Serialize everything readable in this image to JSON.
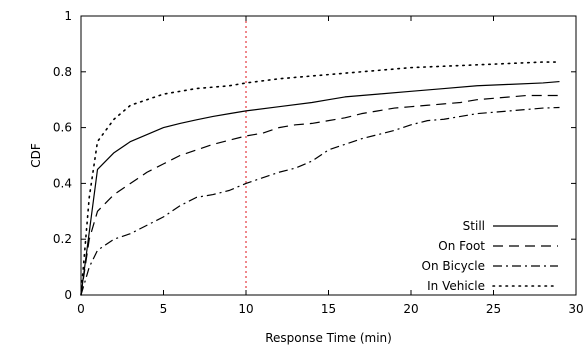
{
  "chart_data": {
    "type": "line",
    "xlabel": "Response Time (min)",
    "ylabel": "CDF",
    "xlim": [
      0,
      30
    ],
    "ylim": [
      0,
      1
    ],
    "xticks": [
      "0",
      "5",
      "10",
      "15",
      "20",
      "25",
      "30"
    ],
    "yticks": [
      "0",
      "0.2",
      "0.4",
      "0.6",
      "0.8",
      "1"
    ],
    "grid": false,
    "legend_position": "bottom-right",
    "reference_line": {
      "x": 10,
      "color": "#e0101a",
      "style": "dotted"
    },
    "series": [
      {
        "name": "Still",
        "dash": "solid",
        "points": [
          [
            0,
            0
          ],
          [
            1,
            0.45
          ],
          [
            2,
            0.51
          ],
          [
            3,
            0.55
          ],
          [
            4,
            0.575
          ],
          [
            5,
            0.6
          ],
          [
            6,
            0.615
          ],
          [
            7,
            0.628
          ],
          [
            8,
            0.64
          ],
          [
            9,
            0.65
          ],
          [
            10,
            0.66
          ],
          [
            12,
            0.675
          ],
          [
            14,
            0.69
          ],
          [
            15,
            0.7
          ],
          [
            16,
            0.71
          ],
          [
            18,
            0.72
          ],
          [
            20,
            0.73
          ],
          [
            22,
            0.74
          ],
          [
            24,
            0.75
          ],
          [
            26,
            0.755
          ],
          [
            28,
            0.76
          ],
          [
            29,
            0.765
          ]
        ]
      },
      {
        "name": "On Foot",
        "dash": "dashed",
        "points": [
          [
            0,
            0
          ],
          [
            0.5,
            0.2
          ],
          [
            1,
            0.3
          ],
          [
            2,
            0.36
          ],
          [
            3,
            0.4
          ],
          [
            4,
            0.44
          ],
          [
            5,
            0.47
          ],
          [
            6,
            0.5
          ],
          [
            7,
            0.52
          ],
          [
            8,
            0.54
          ],
          [
            9,
            0.555
          ],
          [
            10,
            0.57
          ],
          [
            11,
            0.58
          ],
          [
            12,
            0.6
          ],
          [
            13,
            0.61
          ],
          [
            14,
            0.615
          ],
          [
            15,
            0.625
          ],
          [
            16,
            0.635
          ],
          [
            17,
            0.65
          ],
          [
            18,
            0.66
          ],
          [
            19,
            0.67
          ],
          [
            20,
            0.675
          ],
          [
            21,
            0.68
          ],
          [
            22,
            0.685
          ],
          [
            23,
            0.69
          ],
          [
            24,
            0.7
          ],
          [
            25,
            0.705
          ],
          [
            26,
            0.71
          ],
          [
            27,
            0.715
          ],
          [
            28,
            0.715
          ],
          [
            29,
            0.715
          ]
        ]
      },
      {
        "name": "On Bicycle",
        "dash": "dashdot",
        "points": [
          [
            0,
            0
          ],
          [
            0.5,
            0.1
          ],
          [
            1,
            0.16
          ],
          [
            2,
            0.2
          ],
          [
            3,
            0.22
          ],
          [
            4,
            0.25
          ],
          [
            5,
            0.28
          ],
          [
            6,
            0.32
          ],
          [
            7,
            0.35
          ],
          [
            8,
            0.36
          ],
          [
            9,
            0.375
          ],
          [
            10,
            0.4
          ],
          [
            11,
            0.42
          ],
          [
            12,
            0.44
          ],
          [
            13,
            0.455
          ],
          [
            14,
            0.48
          ],
          [
            15,
            0.52
          ],
          [
            16,
            0.54
          ],
          [
            17,
            0.56
          ],
          [
            18,
            0.575
          ],
          [
            19,
            0.59
          ],
          [
            20,
            0.61
          ],
          [
            21,
            0.625
          ],
          [
            22,
            0.63
          ],
          [
            23,
            0.64
          ],
          [
            24,
            0.65
          ],
          [
            25,
            0.655
          ],
          [
            26,
            0.66
          ],
          [
            27,
            0.665
          ],
          [
            28,
            0.67
          ],
          [
            29,
            0.672
          ]
        ]
      },
      {
        "name": "In Vehicle",
        "dash": "dotted",
        "points": [
          [
            0,
            0
          ],
          [
            0.5,
            0.35
          ],
          [
            1,
            0.55
          ],
          [
            2,
            0.63
          ],
          [
            3,
            0.68
          ],
          [
            4,
            0.7
          ],
          [
            5,
            0.72
          ],
          [
            6,
            0.73
          ],
          [
            7,
            0.74
          ],
          [
            8,
            0.745
          ],
          [
            9,
            0.75
          ],
          [
            10,
            0.76
          ],
          [
            12,
            0.775
          ],
          [
            14,
            0.785
          ],
          [
            16,
            0.795
          ],
          [
            18,
            0.805
          ],
          [
            20,
            0.815
          ],
          [
            22,
            0.82
          ],
          [
            24,
            0.825
          ],
          [
            26,
            0.83
          ],
          [
            28,
            0.835
          ],
          [
            29,
            0.835
          ]
        ]
      }
    ]
  }
}
